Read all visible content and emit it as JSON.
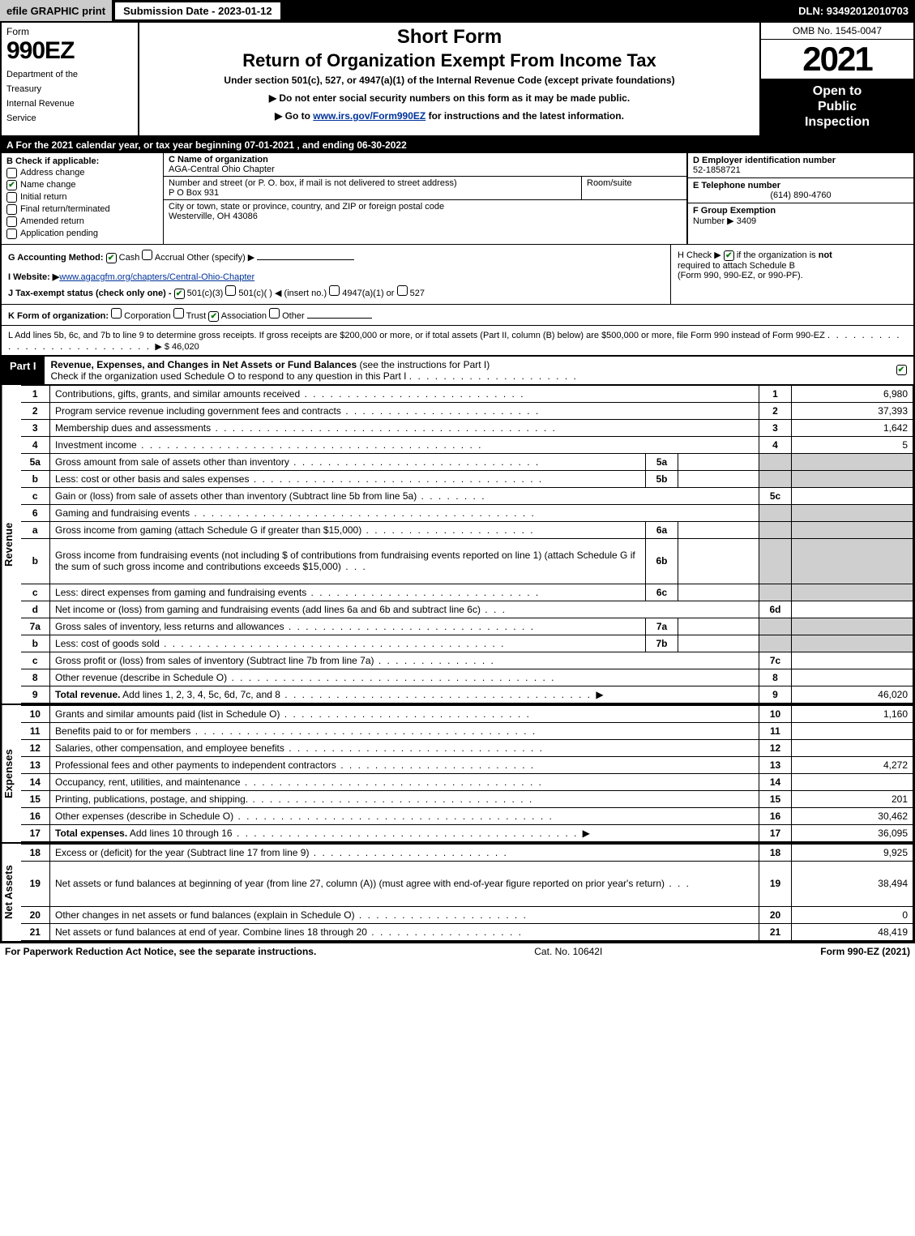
{
  "colors": {
    "black": "#000000",
    "white": "#ffffff",
    "gray": "#cbcbcb",
    "shade": "#cfcfcf",
    "link": "#003399",
    "check_green": "#0a7a0a"
  },
  "topbar": {
    "efile": "efile GRAPHIC print",
    "submission": "Submission Date - 2023-01-12",
    "dln": "DLN: 93492012010703"
  },
  "header": {
    "form_small": "Form",
    "form_name": "990EZ",
    "dept1": "Department of the",
    "dept2": "Treasury",
    "dept3": "Internal Revenue",
    "dept4": "Service",
    "short_form": "Short Form",
    "return_line": "Return of Organization Exempt From Income Tax",
    "under": "Under section 501(c), 527, or 4947(a)(1) of the Internal Revenue Code (except private foundations)",
    "arrow1": "▶ Do not enter social security numbers on this form as it may be made public.",
    "arrow2_pre": "▶ Go to ",
    "arrow2_link": "www.irs.gov/Form990EZ",
    "arrow2_post": " for instructions and the latest information.",
    "omb": "OMB No. 1545-0047",
    "year": "2021",
    "inspection1": "Open to",
    "inspection2": "Public",
    "inspection3": "Inspection"
  },
  "lineA": "A  For the 2021 calendar year, or tax year beginning 07-01-2021  , and ending 06-30-2022",
  "secB": {
    "title": "B  Check if applicable:",
    "items": [
      {
        "label": "Address change",
        "checked": false
      },
      {
        "label": "Name change",
        "checked": true
      },
      {
        "label": "Initial return",
        "checked": false
      },
      {
        "label": "Final return/terminated",
        "checked": false
      },
      {
        "label": "Amended return",
        "checked": false
      },
      {
        "label": "Application pending",
        "checked": false
      }
    ],
    "c_label": "C Name of organization",
    "c_value": "AGA-Central Ohio Chapter",
    "street_label": "Number and street (or P. O. box, if mail is not delivered to street address)",
    "street_value": "P O Box 931",
    "room_label": "Room/suite",
    "city_label": "City or town, state or province, country, and ZIP or foreign postal code",
    "city_value": "Westerville, OH  43086",
    "d_label": "D Employer identification number",
    "d_value": "52-1858721",
    "e_label": "E Telephone number",
    "e_value": "(614) 890-4760",
    "f_label": "F Group Exemption",
    "f_label2": "Number  ▶",
    "f_value": "3409"
  },
  "secG": {
    "g_label": "G Accounting Method:",
    "cash": "Cash",
    "accrual": "Accrual",
    "other": "Other (specify) ▶",
    "i_label": "I Website: ▶",
    "i_value": "www.agacgfm.org/chapters/Central-Ohio-Chapter",
    "j_label": "J Tax-exempt status (check only one) -",
    "j_501c3": "501(c)(3)",
    "j_501c": "501(c)( )",
    "j_insert": "◀ (insert no.)",
    "j_4947": "4947(a)(1) or",
    "j_527": "527",
    "h_label": "H  Check ▶",
    "h_text1": "if the organization is ",
    "h_not": "not",
    "h_text2": "required to attach Schedule B",
    "h_text3": "(Form 990, 990-EZ, or 990-PF)."
  },
  "lineK_label": "K Form of organization:",
  "lineK_opts": [
    "Corporation",
    "Trust",
    "Association",
    "Other"
  ],
  "lineK_checked": 2,
  "lineL": "L Add lines 5b, 6c, and 7b to line 9 to determine gross receipts. If gross receipts are $200,000 or more, or if total assets (Part II, column (B) below) are $500,000 or more, file Form 990 instead of Form 990-EZ",
  "lineL_amount": "$ 46,020",
  "partI": {
    "tag": "Part I",
    "title_b": "Revenue, Expenses, and Changes in Net Assets or Fund Balances",
    "title_rest": " (see the instructions for Part I)",
    "subtitle": "Check if the organization used Schedule O to respond to any question in this Part I"
  },
  "rotations": {
    "revenue": "Revenue",
    "expenses": "Expenses",
    "netassets": "Net Assets"
  },
  "rows": [
    {
      "n": "1",
      "desc": "Contributions, gifts, grants, and similar amounts received",
      "out_n": "1",
      "out_v": "6,980"
    },
    {
      "n": "2",
      "desc": "Program service revenue including government fees and contracts",
      "out_n": "2",
      "out_v": "37,393"
    },
    {
      "n": "3",
      "desc": "Membership dues and assessments",
      "out_n": "3",
      "out_v": "1,642"
    },
    {
      "n": "4",
      "desc": "Investment income",
      "out_n": "4",
      "out_v": "5"
    },
    {
      "n": "5a",
      "desc": "Gross amount from sale of assets other than inventory",
      "in_n": "5a",
      "in_v": "",
      "shade_out": true
    },
    {
      "n": "b",
      "desc": "Less: cost or other basis and sales expenses",
      "in_n": "5b",
      "in_v": "",
      "shade_out": true
    },
    {
      "n": "c",
      "desc": "Gain or (loss) from sale of assets other than inventory (Subtract line 5b from line 5a)",
      "out_n": "5c",
      "out_v": ""
    },
    {
      "n": "6",
      "desc": "Gaming and fundraising events",
      "shade_out": true,
      "no_out_n": true
    },
    {
      "n": "a",
      "desc": "Gross income from gaming (attach Schedule G if greater than $15,000)",
      "in_n": "6a",
      "in_v": "",
      "shade_out": true
    },
    {
      "n": "b",
      "desc": "Gross income from fundraising events (not including $                    of contributions from fundraising events reported on line 1) (attach Schedule G if the sum of such gross income and contributions exceeds $15,000)",
      "in_n": "6b",
      "in_v": "",
      "shade_out": true,
      "tall": true
    },
    {
      "n": "c",
      "desc": "Less: direct expenses from gaming and fundraising events",
      "in_n": "6c",
      "in_v": "",
      "shade_out": true
    },
    {
      "n": "d",
      "desc": "Net income or (loss) from gaming and fundraising events (add lines 6a and 6b and subtract line 6c)",
      "out_n": "6d",
      "out_v": ""
    },
    {
      "n": "7a",
      "desc": "Gross sales of inventory, less returns and allowances",
      "in_n": "7a",
      "in_v": "",
      "shade_out": true
    },
    {
      "n": "b",
      "desc": "Less: cost of goods sold",
      "in_n": "7b",
      "in_v": "",
      "shade_out": true
    },
    {
      "n": "c",
      "desc": "Gross profit or (loss) from sales of inventory (Subtract line 7b from line 7a)",
      "out_n": "7c",
      "out_v": ""
    },
    {
      "n": "8",
      "desc": "Other revenue (describe in Schedule O)",
      "out_n": "8",
      "out_v": ""
    },
    {
      "n": "9",
      "desc_b": "Total revenue.",
      "desc": " Add lines 1, 2, 3, 4, 5c, 6d, 7c, and 8",
      "out_n": "9",
      "out_v": "46,020",
      "arrow": true
    }
  ],
  "exp_rows": [
    {
      "n": "10",
      "desc": "Grants and similar amounts paid (list in Schedule O)",
      "out_n": "10",
      "out_v": "1,160"
    },
    {
      "n": "11",
      "desc": "Benefits paid to or for members",
      "out_n": "11",
      "out_v": ""
    },
    {
      "n": "12",
      "desc": "Salaries, other compensation, and employee benefits",
      "out_n": "12",
      "out_v": ""
    },
    {
      "n": "13",
      "desc": "Professional fees and other payments to independent contractors",
      "out_n": "13",
      "out_v": "4,272"
    },
    {
      "n": "14",
      "desc": "Occupancy, rent, utilities, and maintenance",
      "out_n": "14",
      "out_v": ""
    },
    {
      "n": "15",
      "desc": "Printing, publications, postage, and shipping.",
      "out_n": "15",
      "out_v": "201"
    },
    {
      "n": "16",
      "desc": "Other expenses (describe in Schedule O)",
      "out_n": "16",
      "out_v": "30,462"
    },
    {
      "n": "17",
      "desc_b": "Total expenses.",
      "desc": " Add lines 10 through 16",
      "out_n": "17",
      "out_v": "36,095",
      "arrow": true
    }
  ],
  "na_rows": [
    {
      "n": "18",
      "desc": "Excess or (deficit) for the year (Subtract line 17 from line 9)",
      "out_n": "18",
      "out_v": "9,925"
    },
    {
      "n": "19",
      "desc": "Net assets or fund balances at beginning of year (from line 27, column (A)) (must agree with end-of-year figure reported on prior year's return)",
      "out_n": "19",
      "out_v": "38,494",
      "tall": true,
      "shade_first": true
    },
    {
      "n": "20",
      "desc": "Other changes in net assets or fund balances (explain in Schedule O)",
      "out_n": "20",
      "out_v": "0"
    },
    {
      "n": "21",
      "desc": "Net assets or fund balances at end of year. Combine lines 18 through 20",
      "out_n": "21",
      "out_v": "48,419"
    }
  ],
  "footer": {
    "left": "For Paperwork Reduction Act Notice, see the separate instructions.",
    "mid": "Cat. No. 10642I",
    "right_pre": "Form ",
    "right_b": "990-EZ",
    "right_post": " (2021)"
  }
}
